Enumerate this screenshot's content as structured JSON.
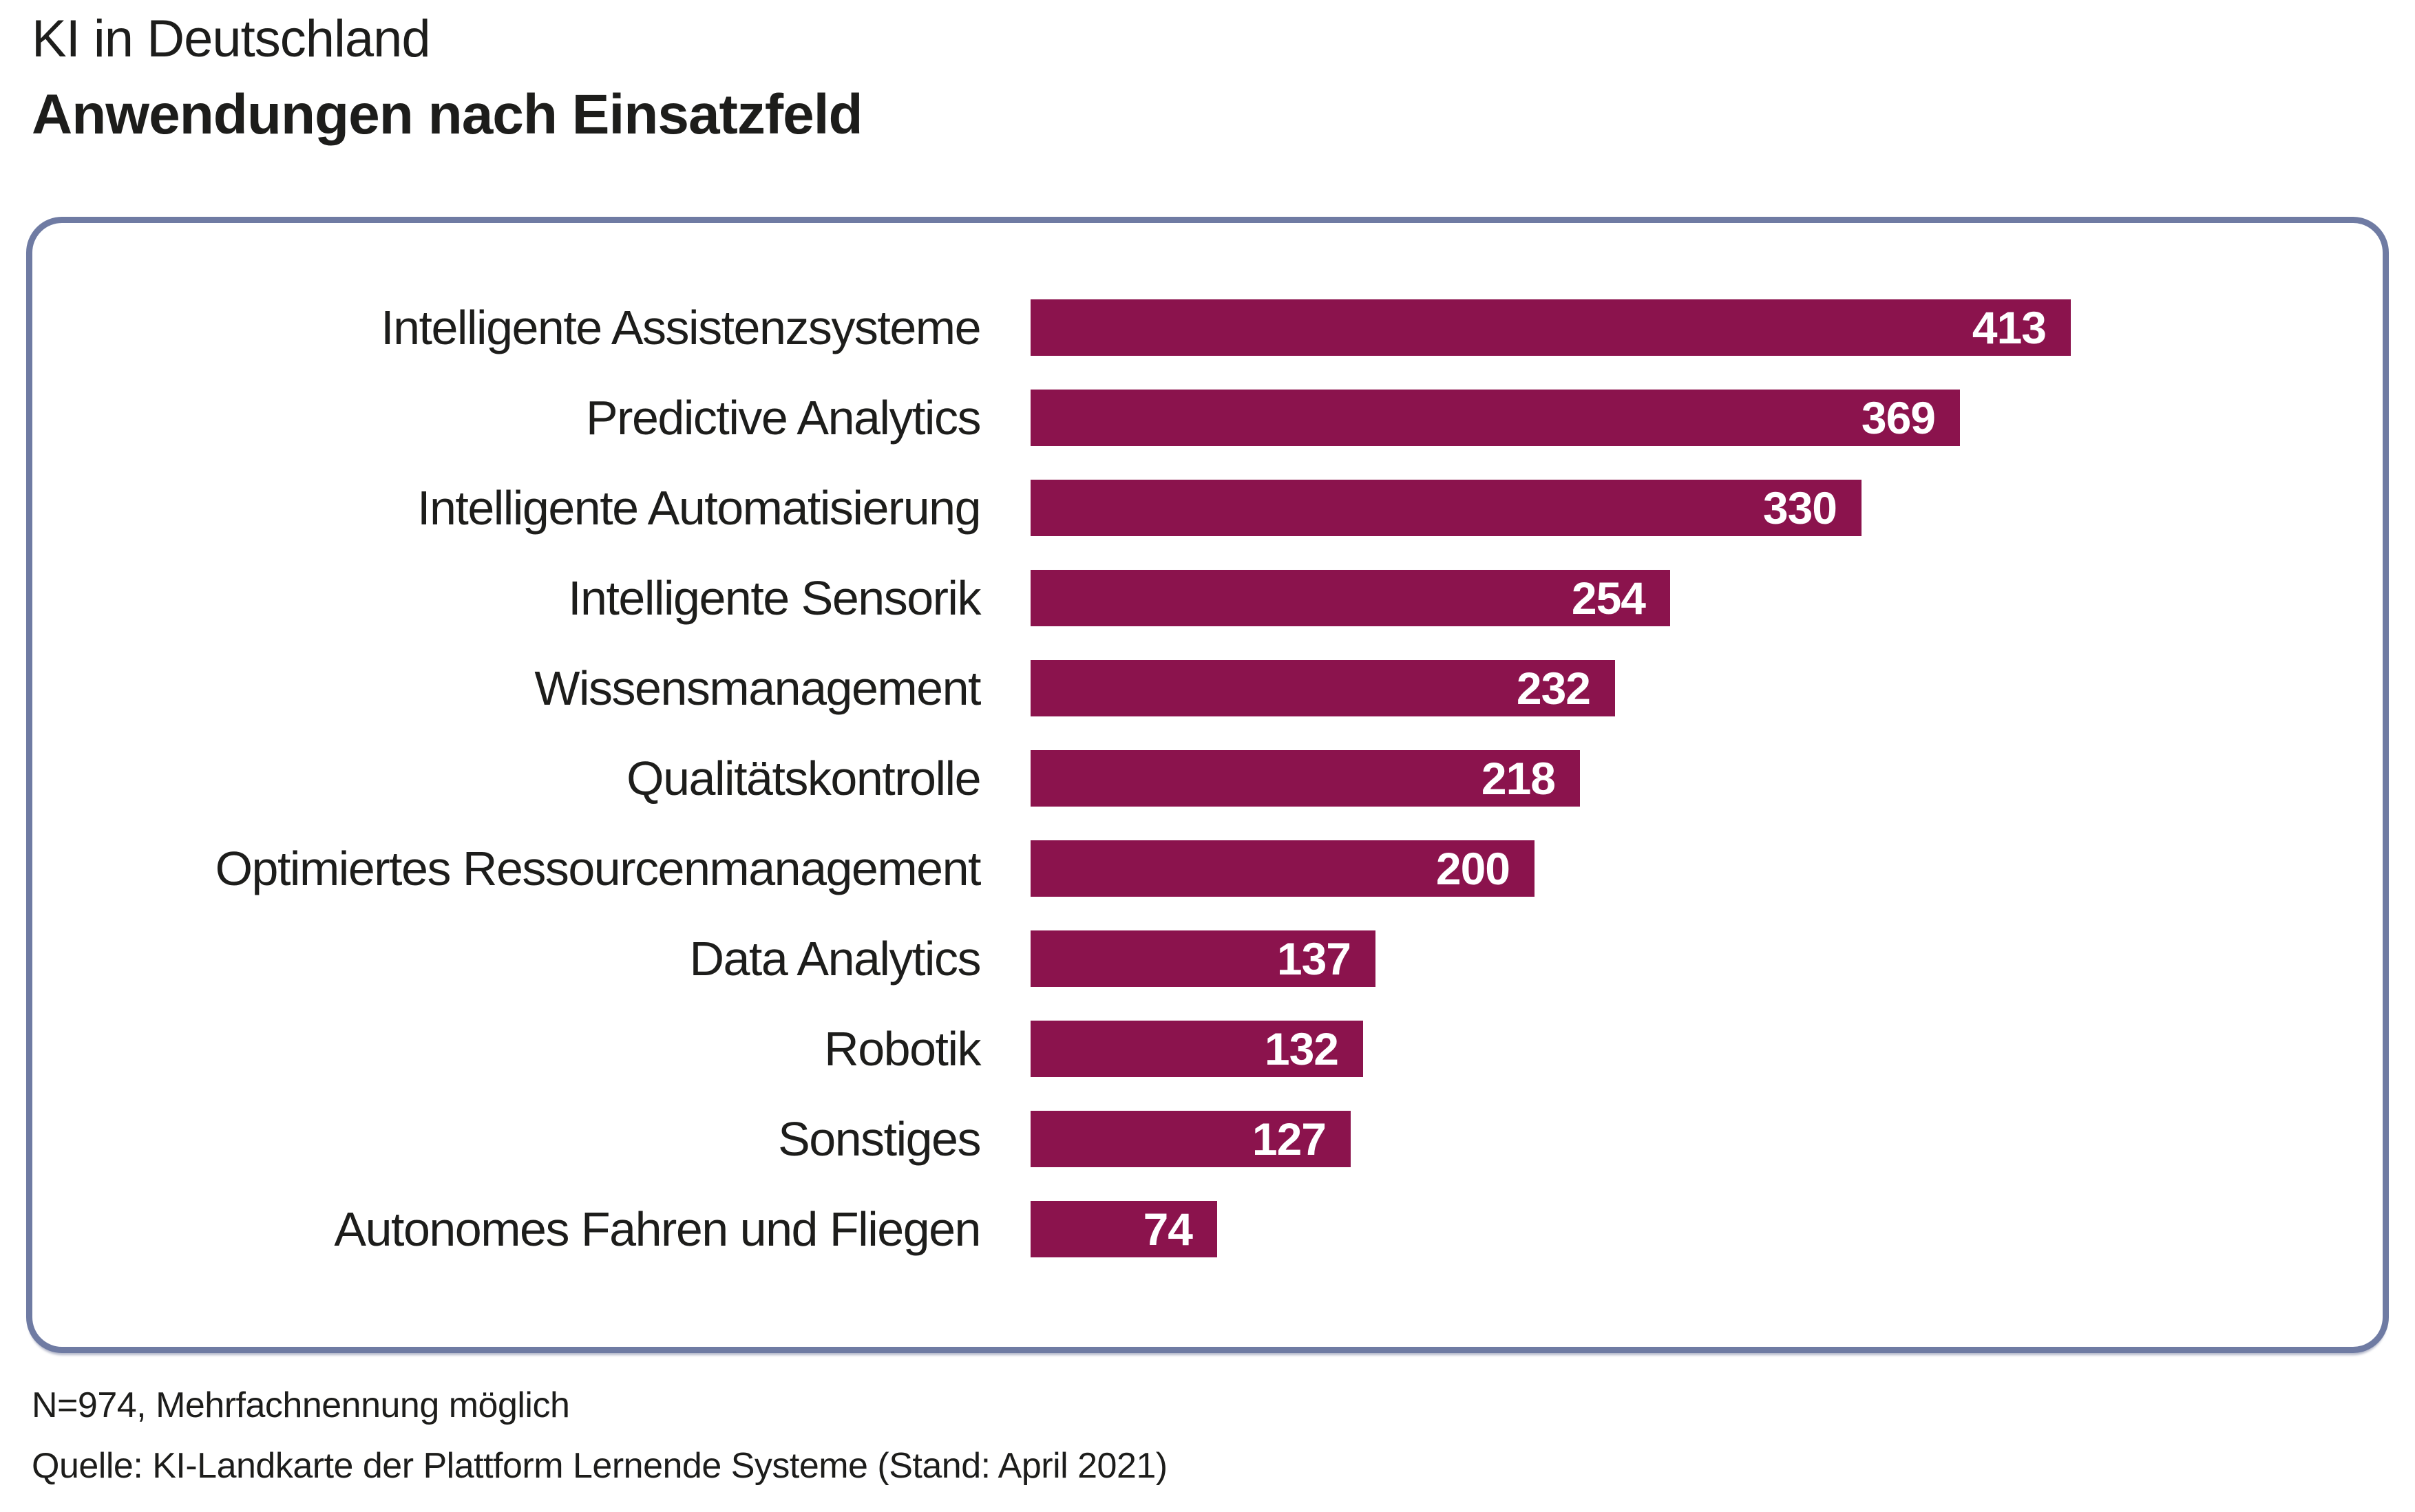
{
  "header": {
    "title": "KI in Deutschland",
    "subtitle": "Anwendungen nach Einsatzfeld"
  },
  "chart_data": {
    "type": "bar",
    "orientation": "horizontal",
    "title": "KI in Deutschland",
    "subtitle": "Anwendungen nach Einsatzfeld",
    "categories": [
      "Intelligente Assistenzsysteme",
      "Predictive Analytics",
      "Intelligente Automatisierung",
      "Intelligente Sensorik",
      "Wissensmanagement",
      "Qualitätskontrolle",
      "Optimiertes Ressourcenmanagement",
      "Data Analytics",
      "Robotik",
      "Sonstiges",
      "Autonomes Fahren und Fliegen"
    ],
    "values": [
      413,
      369,
      330,
      254,
      232,
      218,
      200,
      137,
      132,
      127,
      74
    ],
    "xlim": [
      0,
      413
    ],
    "grid": false,
    "legend": false,
    "value_label_position": "inside-right",
    "bar_color": "#8b134d",
    "value_text_color": "#ffffff",
    "label_text_color": "#1d1d1b"
  },
  "panel": {
    "border_color": "#6f7ba3",
    "background_color": "#ffffff"
  },
  "footer": {
    "note": "N=974, Mehrfachnennung möglich",
    "source": "Quelle: KI-Landkarte der Plattform Lernende Systeme (Stand: April 2021)"
  }
}
